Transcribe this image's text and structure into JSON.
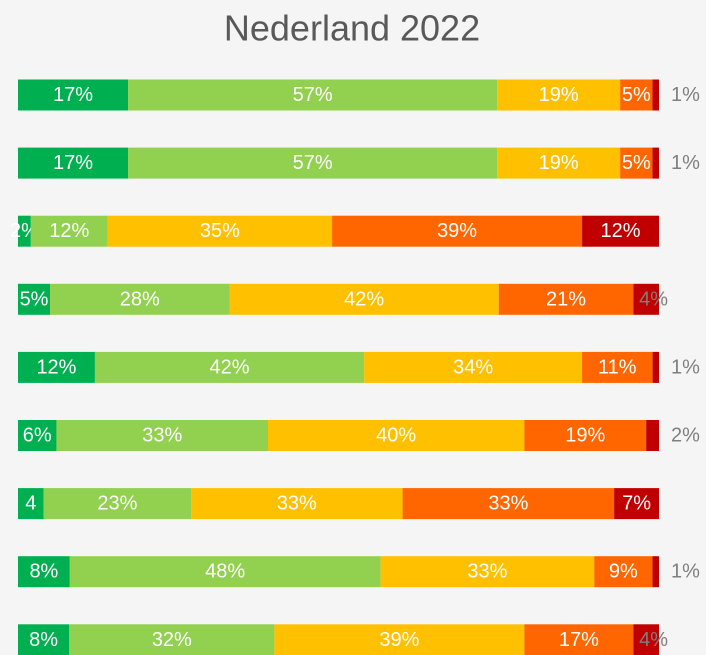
{
  "chart_data": {
    "type": "bar",
    "orientation": "horizontal",
    "stacked": true,
    "title": "Nederland 2022",
    "categories": [
      null,
      null,
      null,
      null,
      null,
      null,
      null,
      null,
      null
    ],
    "series": [
      {
        "color": "#00b050",
        "values": [
          17,
          17,
          2,
          5,
          12,
          6,
          4,
          8,
          8
        ],
        "value_labels": [
          "17%",
          "17%",
          "2%",
          "5%",
          "12%",
          "6%",
          "4",
          "8%",
          "8%"
        ]
      },
      {
        "color": "#92d050",
        "values": [
          57,
          57,
          12,
          28,
          42,
          33,
          23,
          48,
          32
        ],
        "value_labels": [
          "57%",
          "57%",
          "12%",
          "28%",
          "42%",
          "33%",
          "23%",
          "48%",
          "32%"
        ]
      },
      {
        "color": "#ffc000",
        "values": [
          19,
          19,
          35,
          42,
          34,
          40,
          33,
          33,
          39
        ],
        "value_labels": [
          "19%",
          "19%",
          "35%",
          "42%",
          "34%",
          "40%",
          "33%",
          "33%",
          "39%"
        ]
      },
      {
        "color": "#ff6600",
        "values": [
          5,
          5,
          39,
          21,
          11,
          19,
          33,
          9,
          17
        ],
        "value_labels": [
          "5%",
          "5%",
          "39%",
          "21%",
          "11%",
          "19%",
          "33%",
          "9%",
          "17%"
        ]
      },
      {
        "color": "#c00000",
        "values": [
          1,
          1,
          12,
          4,
          1,
          2,
          7,
          1,
          4
        ],
        "value_labels": [
          "1%",
          "1%",
          "12%",
          "4%",
          "1%",
          "2%",
          "7%",
          "1%",
          "4%"
        ]
      }
    ]
  }
}
